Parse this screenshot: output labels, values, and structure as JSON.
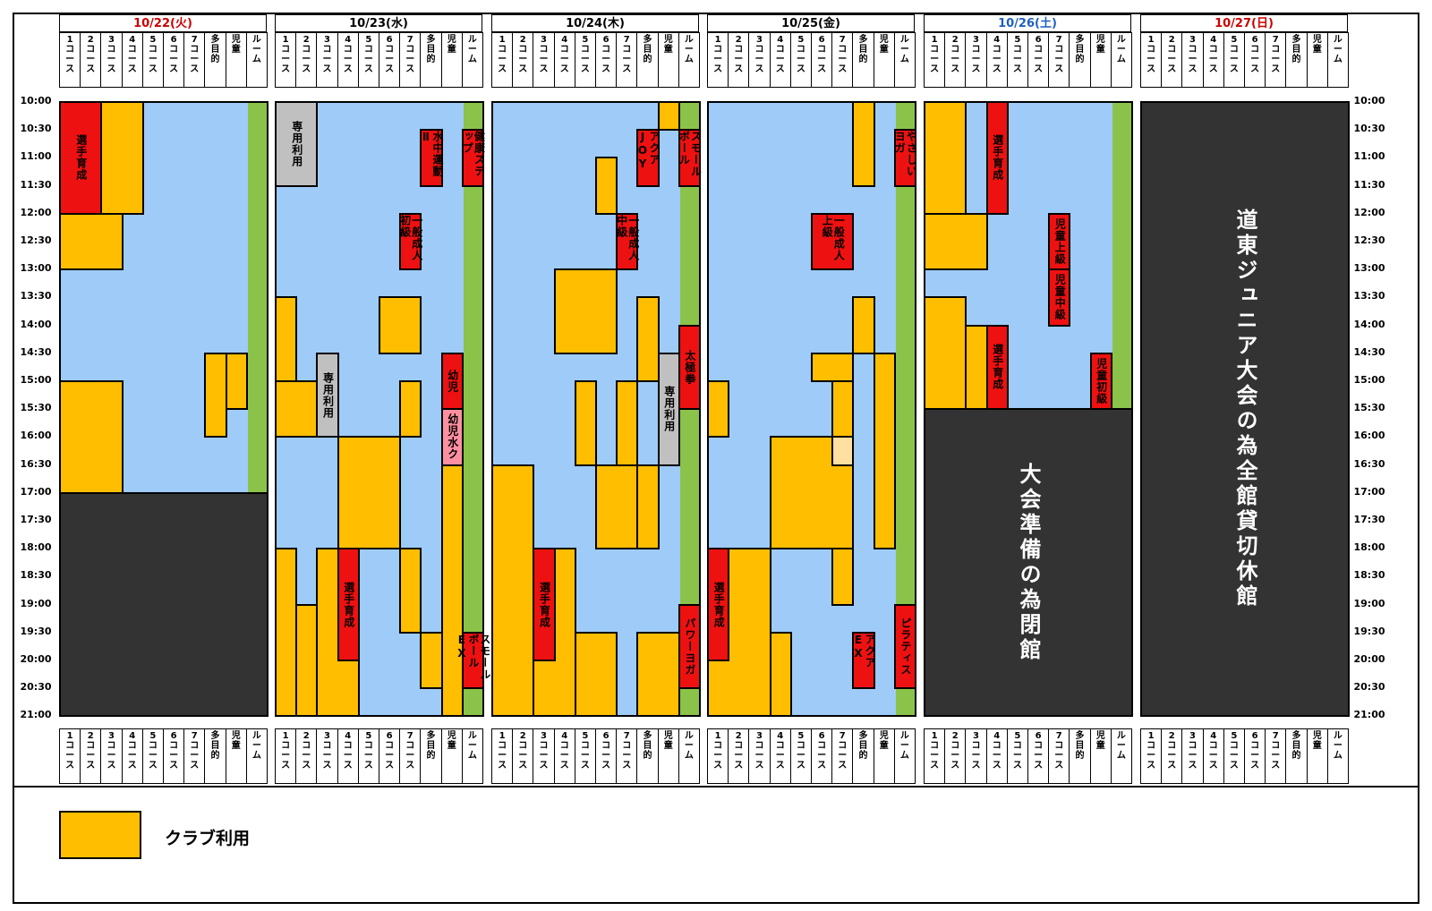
{
  "days": [
    {
      "label": "10/22(火)",
      "color": "#cc0000"
    },
    {
      "label": "10/23(水)",
      "color": "#000000"
    },
    {
      "label": "10/24(木)",
      "color": "#000000"
    },
    {
      "label": "10/25(金)",
      "color": "#000000"
    },
    {
      "label": "10/26(土)",
      "color": "#1f5fbf"
    },
    {
      "label": "10/27(日)",
      "color": "#cc0000"
    }
  ],
  "columns": [
    {
      "num": "1",
      "label": "コース"
    },
    {
      "num": "2",
      "label": "コース"
    },
    {
      "num": "3",
      "label": "コース"
    },
    {
      "num": "4",
      "label": "コース"
    },
    {
      "num": "5",
      "label": "コース"
    },
    {
      "num": "6",
      "label": "コース"
    },
    {
      "num": "7",
      "label": "コース"
    },
    {
      "num": "",
      "label": "多目的"
    },
    {
      "num": "",
      "label": "児童"
    },
    {
      "num": "",
      "label": "ルーム"
    }
  ],
  "times": [
    "10:00",
    "10:30",
    "11:00",
    "11:30",
    "12:00",
    "12:30",
    "13:00",
    "13:30",
    "14:00",
    "14:30",
    "15:00",
    "15:30",
    "16:00",
    "16:30",
    "17:00",
    "17:30",
    "18:00",
    "18:30",
    "19:00",
    "19:30",
    "20:00",
    "20:30",
    "21:00"
  ],
  "blocks": [
    {
      "day": 0,
      "c0": 0,
      "c1": 2,
      "t0": 0,
      "t1": 4,
      "type": "red",
      "text": "選手育成"
    },
    {
      "day": 0,
      "c0": 0,
      "c1": 3,
      "t0": 4,
      "t1": 6,
      "type": "club",
      "text": ""
    },
    {
      "day": 0,
      "c0": 2,
      "c1": 3,
      "t0": 2,
      "t1": 4,
      "type": "club",
      "text": ""
    },
    {
      "day": 0,
      "c0": 2,
      "c1": 4,
      "t0": 0,
      "t1": 4,
      "type": "club",
      "text": ""
    },
    {
      "day": 0,
      "c0": 0,
      "c1": 3,
      "t0": 10,
      "t1": 14,
      "type": "club",
      "text": ""
    },
    {
      "day": 0,
      "c0": 7,
      "c1": 8,
      "t0": 9,
      "t1": 12,
      "type": "club",
      "text": ""
    },
    {
      "day": 0,
      "c0": 8,
      "c1": 9,
      "t0": 9,
      "t1": 11,
      "type": "club",
      "text": ""
    },
    {
      "day": 0,
      "c0": 0,
      "c1": 10,
      "t0": 14,
      "t1": 22,
      "type": "dark",
      "text": ""
    },
    {
      "day": 1,
      "c0": 0,
      "c1": 2,
      "t0": 0,
      "t1": 3,
      "type": "gray",
      "text": "専用利用"
    },
    {
      "day": 1,
      "c0": 7,
      "c1": 8,
      "t0": 1,
      "t1": 3,
      "type": "red",
      "text": "水中運動Ⅱ"
    },
    {
      "day": 1,
      "c0": 9,
      "c1": 10,
      "t0": 1,
      "t1": 3,
      "type": "red",
      "text": "健康ステップ"
    },
    {
      "day": 1,
      "c0": 6,
      "c1": 7,
      "t0": 4,
      "t1": 6,
      "type": "red",
      "text": "一般成人初級"
    },
    {
      "day": 1,
      "c0": 0,
      "c1": 1,
      "t0": 7,
      "t1": 10,
      "type": "club",
      "text": ""
    },
    {
      "day": 1,
      "c0": 0,
      "c1": 2,
      "t0": 10,
      "t1": 12,
      "type": "club",
      "text": ""
    },
    {
      "day": 1,
      "c0": 2,
      "c1": 3,
      "t0": 9,
      "t1": 12,
      "type": "gray",
      "text": "専用利用"
    },
    {
      "day": 1,
      "c0": 5,
      "c1": 7,
      "t0": 7,
      "t1": 9,
      "type": "club",
      "text": ""
    },
    {
      "day": 1,
      "c0": 6,
      "c1": 7,
      "t0": 10,
      "t1": 12,
      "type": "club",
      "text": ""
    },
    {
      "day": 1,
      "c0": 8,
      "c1": 9,
      "t0": 9,
      "t1": 11,
      "type": "red",
      "text": "幼児"
    },
    {
      "day": 1,
      "c0": 8,
      "c1": 9,
      "t0": 11,
      "t1": 13,
      "type": "pink",
      "text": "幼児水ク"
    },
    {
      "day": 1,
      "c0": 3,
      "c1": 6,
      "t0": 12,
      "t1": 16,
      "type": "club",
      "text": ""
    },
    {
      "day": 1,
      "c0": 0,
      "c1": 1,
      "t0": 16,
      "t1": 22,
      "type": "club",
      "text": ""
    },
    {
      "day": 1,
      "c0": 1,
      "c1": 2,
      "t0": 18,
      "t1": 22,
      "type": "club",
      "text": ""
    },
    {
      "day": 1,
      "c0": 2,
      "c1": 4,
      "t0": 16,
      "t1": 22,
      "type": "club",
      "text": ""
    },
    {
      "day": 1,
      "c0": 3,
      "c1": 4,
      "t0": 16,
      "t1": 20,
      "type": "red",
      "text": "選手育成"
    },
    {
      "day": 1,
      "c0": 6,
      "c1": 7,
      "t0": 16,
      "t1": 19,
      "type": "club",
      "text": ""
    },
    {
      "day": 1,
      "c0": 7,
      "c1": 8,
      "t0": 19,
      "t1": 21,
      "type": "club",
      "text": ""
    },
    {
      "day": 1,
      "c0": 8,
      "c1": 9,
      "t0": 13,
      "t1": 22,
      "type": "club",
      "text": ""
    },
    {
      "day": 1,
      "c0": 9,
      "c1": 10,
      "t0": 19,
      "t1": 21,
      "type": "red",
      "text": "スモールボールEX"
    },
    {
      "day": 2,
      "c0": 8,
      "c1": 9,
      "t0": 0,
      "t1": 1,
      "type": "club",
      "text": ""
    },
    {
      "day": 2,
      "c0": 7,
      "c1": 8,
      "t0": 1,
      "t1": 3,
      "type": "red",
      "text": "アクアJOY"
    },
    {
      "day": 2,
      "c0": 9,
      "c1": 10,
      "t0": 1,
      "t1": 3,
      "type": "red",
      "text": "スモールボール"
    },
    {
      "day": 2,
      "c0": 5,
      "c1": 6,
      "t0": 2,
      "t1": 4,
      "type": "club",
      "text": ""
    },
    {
      "day": 2,
      "c0": 6,
      "c1": 7,
      "t0": 4,
      "t1": 6,
      "type": "red",
      "text": "一般成人中級"
    },
    {
      "day": 2,
      "c0": 3,
      "c1": 6,
      "t0": 6,
      "t1": 9,
      "type": "club",
      "text": ""
    },
    {
      "day": 2,
      "c0": 7,
      "c1": 8,
      "t0": 7,
      "t1": 10,
      "type": "club",
      "text": ""
    },
    {
      "day": 2,
      "c0": 9,
      "c1": 10,
      "t0": 8,
      "t1": 11,
      "type": "red",
      "text": "太極拳"
    },
    {
      "day": 2,
      "c0": 4,
      "c1": 5,
      "t0": 10,
      "t1": 13,
      "type": "club",
      "text": ""
    },
    {
      "day": 2,
      "c0": 6,
      "c1": 7,
      "t0": 10,
      "t1": 13,
      "type": "club",
      "text": ""
    },
    {
      "day": 2,
      "c0": 8,
      "c1": 9,
      "t0": 9,
      "t1": 13,
      "type": "gray",
      "text": "専用利用"
    },
    {
      "day": 2,
      "c0": 0,
      "c1": 2,
      "t0": 13,
      "t1": 22,
      "type": "club",
      "text": ""
    },
    {
      "day": 2,
      "c0": 5,
      "c1": 7,
      "t0": 13,
      "t1": 16,
      "type": "club",
      "text": ""
    },
    {
      "day": 2,
      "c0": 7,
      "c1": 8,
      "t0": 13,
      "t1": 16,
      "type": "club",
      "text": ""
    },
    {
      "day": 2,
      "c0": 2,
      "c1": 4,
      "t0": 16,
      "t1": 22,
      "type": "club",
      "text": ""
    },
    {
      "day": 2,
      "c0": 2,
      "c1": 3,
      "t0": 16,
      "t1": 20,
      "type": "red",
      "text": "選手育成"
    },
    {
      "day": 2,
      "c0": 4,
      "c1": 6,
      "t0": 19,
      "t1": 22,
      "type": "club",
      "text": ""
    },
    {
      "day": 2,
      "c0": 7,
      "c1": 9,
      "t0": 19,
      "t1": 22,
      "type": "club",
      "text": ""
    },
    {
      "day": 2,
      "c0": 9,
      "c1": 10,
      "t0": 18,
      "t1": 21,
      "type": "red",
      "text": "パワーヨガ"
    },
    {
      "day": 3,
      "c0": 7,
      "c1": 8,
      "t0": 0,
      "t1": 3,
      "type": "club",
      "text": ""
    },
    {
      "day": 3,
      "c0": 9,
      "c1": 10,
      "t0": 1,
      "t1": 3,
      "type": "red",
      "text": "やさしいヨガ"
    },
    {
      "day": 3,
      "c0": 5,
      "c1": 7,
      "t0": 4,
      "t1": 6,
      "type": "red",
      "text": "一般成人上級"
    },
    {
      "day": 3,
      "c0": 7,
      "c1": 8,
      "t0": 7,
      "t1": 9,
      "type": "club",
      "text": ""
    },
    {
      "day": 3,
      "c0": 0,
      "c1": 1,
      "t0": 10,
      "t1": 12,
      "type": "club",
      "text": ""
    },
    {
      "day": 3,
      "c0": 5,
      "c1": 7,
      "t0": 9,
      "t1": 10,
      "type": "club",
      "text": ""
    },
    {
      "day": 3,
      "c0": 3,
      "c1": 7,
      "t0": 12,
      "t1": 16,
      "type": "club",
      "text": ""
    },
    {
      "day": 3,
      "c0": 6,
      "c1": 7,
      "t0": 12,
      "t1": 13,
      "type": "pale",
      "text": ""
    },
    {
      "day": 3,
      "c0": 6,
      "c1": 7,
      "t0": 10,
      "t1": 12,
      "type": "club",
      "text": ""
    },
    {
      "day": 3,
      "c0": 8,
      "c1": 9,
      "t0": 9,
      "t1": 16,
      "type": "club",
      "text": ""
    },
    {
      "day": 3,
      "c0": 0,
      "c1": 3,
      "t0": 16,
      "t1": 22,
      "type": "club",
      "text": ""
    },
    {
      "day": 3,
      "c0": 0,
      "c1": 1,
      "t0": 16,
      "t1": 20,
      "type": "red",
      "text": "選手育成"
    },
    {
      "day": 3,
      "c0": 3,
      "c1": 4,
      "t0": 19,
      "t1": 22,
      "type": "club",
      "text": ""
    },
    {
      "day": 3,
      "c0": 6,
      "c1": 7,
      "t0": 16,
      "t1": 18,
      "type": "club",
      "text": ""
    },
    {
      "day": 3,
      "c0": 7,
      "c1": 8,
      "t0": 19,
      "t1": 21,
      "type": "red",
      "text": "アクアEX"
    },
    {
      "day": 3,
      "c0": 9,
      "c1": 10,
      "t0": 18,
      "t1": 21,
      "type": "red",
      "text": "ピラティス"
    },
    {
      "day": 4,
      "c0": 0,
      "c1": 2,
      "t0": 0,
      "t1": 4,
      "type": "club",
      "text": ""
    },
    {
      "day": 4,
      "c0": 0,
      "c1": 3,
      "t0": 4,
      "t1": 6,
      "type": "club",
      "text": ""
    },
    {
      "day": 4,
      "c0": 3,
      "c1": 4,
      "t0": 0,
      "t1": 4,
      "type": "red",
      "text": "選手育成"
    },
    {
      "day": 4,
      "c0": 6,
      "c1": 7,
      "t0": 4,
      "t1": 6,
      "type": "red",
      "text": "児童上級"
    },
    {
      "day": 4,
      "c0": 6,
      "c1": 7,
      "t0": 6,
      "t1": 8,
      "type": "red",
      "text": "児童中級"
    },
    {
      "day": 4,
      "c0": 0,
      "c1": 2,
      "t0": 7,
      "t1": 11,
      "type": "club",
      "text": ""
    },
    {
      "day": 4,
      "c0": 2,
      "c1": 3,
      "t0": 8,
      "t1": 11,
      "type": "club",
      "text": ""
    },
    {
      "day": 4,
      "c0": 3,
      "c1": 4,
      "t0": 8,
      "t1": 11,
      "type": "red",
      "text": "選手育成"
    },
    {
      "day": 4,
      "c0": 8,
      "c1": 9,
      "t0": 9,
      "t1": 11,
      "type": "red",
      "text": "児童初級"
    },
    {
      "day": 4,
      "c0": 0,
      "c1": 10,
      "t0": 11,
      "t1": 22,
      "type": "dark",
      "text": "大会準備の為閉館",
      "big": true
    },
    {
      "day": 5,
      "c0": 0,
      "c1": 10,
      "t0": 0,
      "t1": 22,
      "type": "dark",
      "text": "道東ジュニア大会の為全館貸切休館",
      "big": true
    }
  ],
  "legend": {
    "label": "クラブ利用",
    "color": "#ffbe00"
  }
}
